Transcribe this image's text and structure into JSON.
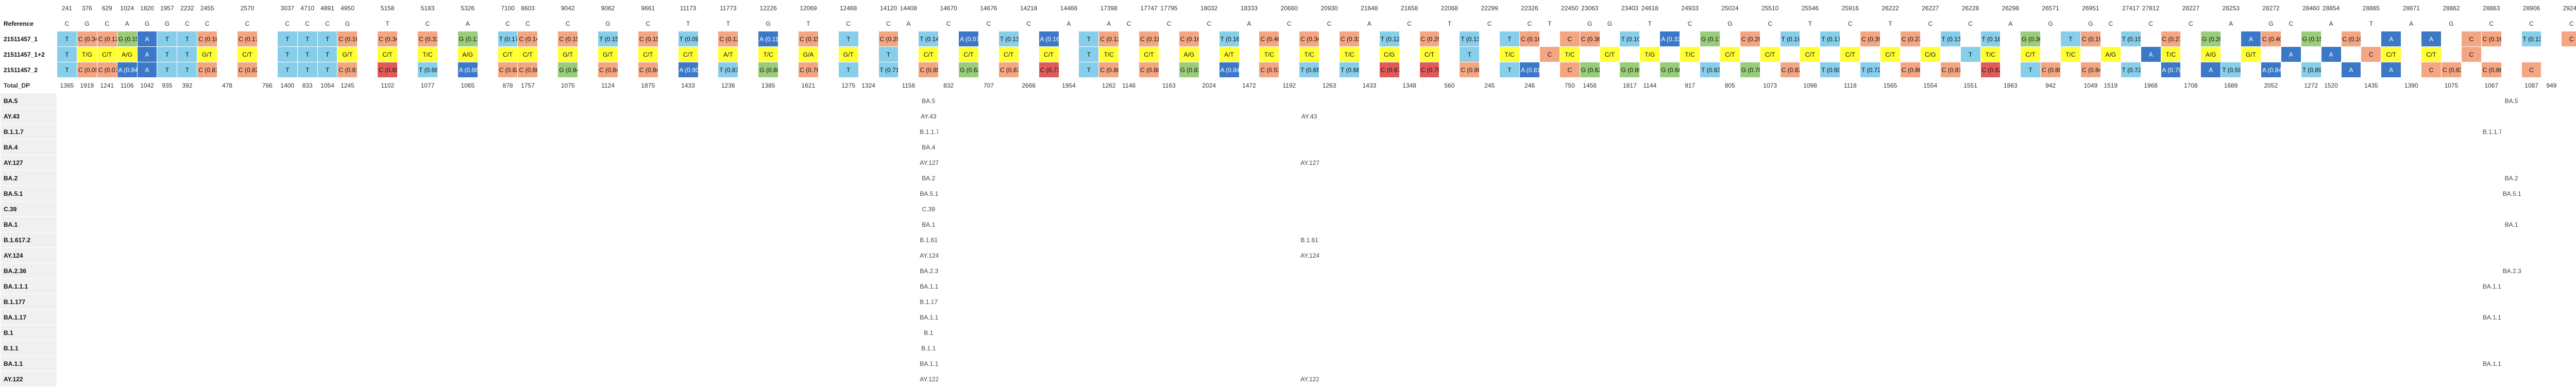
{
  "rows": [
    {
      "label": "",
      "kind": "pos",
      "cells": [
        "241",
        "376",
        "629",
        "1024",
        "1820",
        "1957",
        "2232",
        "2455",
        "",
        "2570",
        "",
        "3037",
        "4710",
        "4891",
        "4950",
        "",
        "5158",
        "",
        "5183",
        "",
        "5326",
        "",
        "7100",
        "8603",
        "",
        "9042",
        "",
        "9062",
        "",
        "9661",
        "",
        "11173",
        "",
        "11773",
        "",
        "12226",
        "",
        "12069",
        "",
        "12468",
        "",
        "14120",
        "14408",
        "",
        "14670",
        "",
        "14676",
        "",
        "14218",
        "",
        "14466",
        "",
        "17398",
        "",
        "17747",
        "17795",
        "",
        "18032",
        "",
        "18333",
        "",
        "20660",
        "",
        "20930",
        "",
        "21648",
        "",
        "21658",
        "",
        "22068",
        "",
        "22299",
        "",
        "22326",
        "",
        "22450",
        "23063",
        "",
        "23403",
        "24618",
        "",
        "24933",
        "",
        "25024",
        "",
        "25510",
        "",
        "25546",
        "",
        "25916",
        "",
        "26222",
        "",
        "26227",
        "",
        "26228",
        "",
        "26298",
        "",
        "26571",
        "",
        "26951",
        "",
        "27417",
        "27812",
        "",
        "28227",
        "",
        "28253",
        "",
        "28272",
        "",
        "28460",
        "28854",
        "",
        "28865",
        "",
        "28871",
        "",
        "28862",
        "",
        "28863",
        "",
        "28906",
        "",
        "29245",
        "",
        "29326"
      ]
    },
    {
      "label": "Reference",
      "kind": "ref",
      "cells": [
        "C",
        "G",
        "C",
        "A",
        "G",
        "G",
        "C",
        "C",
        "",
        "C",
        "",
        "C",
        "C",
        "C",
        "G",
        "",
        "T",
        "",
        "C",
        "",
        "A",
        "",
        "C",
        "C",
        "",
        "C",
        "",
        "G",
        "",
        "C",
        "",
        "T",
        "",
        "T",
        "",
        "G",
        "",
        "T",
        "",
        "C",
        "",
        "C",
        "A",
        "",
        "C",
        "",
        "C",
        "",
        "C",
        "",
        "A",
        "",
        "A",
        "C",
        "",
        "C",
        "",
        "C",
        "",
        "A",
        "",
        "C",
        "",
        "C",
        "",
        "A",
        "",
        "C",
        "",
        "T",
        "",
        "C",
        "",
        "C",
        "T",
        "",
        "G",
        "G",
        "",
        "T",
        "",
        "C",
        "",
        "G",
        "",
        "C",
        "",
        "T",
        "",
        "C",
        "",
        "T",
        "",
        "C",
        "",
        "C",
        "",
        "A",
        "",
        "G",
        "",
        "G",
        "C",
        "",
        "C",
        "",
        "C",
        "",
        "A",
        "",
        "G",
        "C",
        "",
        "A",
        "",
        "T",
        "",
        "A",
        "",
        "G",
        "",
        "C",
        "",
        "C",
        "",
        "C"
      ]
    },
    {
      "label": "21511457_1",
      "kind": "sample",
      "cells": [
        "T",
        "C (0.344)",
        "C (0.126)",
        "G (0.156)",
        "A",
        "T",
        "T",
        "C (0.182)",
        "",
        "C (0.178)",
        "",
        "T",
        "T",
        "T",
        "C (0.166)",
        "",
        "C (0.345)",
        "",
        "C (0.335)",
        "",
        "G (0.131)",
        "",
        "T (0.172)",
        "C (0.14)",
        "",
        "C (0.159)",
        "",
        "T (0.158)",
        "",
        "C (0.153)",
        "",
        "T (0.093)",
        "",
        "C (0.121)",
        "",
        "A (0.113)",
        "",
        "C (0.151)",
        "",
        "T",
        "",
        "C (0.29)",
        "",
        "T (0.144)",
        "",
        "A (0.073)",
        "",
        "T (0.13)",
        "",
        "A (0.167)",
        "",
        "T",
        "C (0.12)",
        "",
        "C (0.112)",
        "",
        "C (0.166)",
        "",
        "T (0.16)",
        "",
        "C (0.467)",
        "",
        "C (0.348)",
        "",
        "C (0.332)",
        "",
        "T (0.125)",
        "",
        "C (0.294)",
        "",
        "T (0.134)",
        "",
        "T",
        "C (0.161)",
        "",
        "C",
        "C (0.36)",
        "",
        "T (0.104)",
        "",
        "A (0.333)",
        "",
        "G (0.17)",
        "",
        "C (0.291)",
        "",
        "T (0.196)",
        "",
        "T (0.175)",
        "",
        "C (0.396)",
        "",
        "C (0.278)",
        "",
        "T (0.137)",
        "",
        "T (0.185)",
        "",
        "G (0.369)",
        "",
        "T",
        "C (0.195)",
        "",
        "T (0.155)",
        "",
        "C (0.279)",
        "",
        "G (0.203)",
        "",
        "A",
        "C (0.408)",
        "",
        "G (0.151)",
        "",
        "C (0.101)",
        "",
        "A",
        "",
        "A",
        "",
        "C",
        "C (0.162)",
        "",
        "T (0.138)",
        "",
        "C"
      ]
    },
    {
      "label": "21511457_1+2",
      "kind": "sample",
      "cells": [
        "T",
        "T/G",
        "C/T",
        "A/G",
        "A",
        "T",
        "T",
        "G/T",
        "",
        "C/T",
        "",
        "T",
        "T",
        "T",
        "G/T",
        "",
        "C/T",
        "",
        "T/C",
        "",
        "A/G",
        "",
        "C/T",
        "C/T",
        "",
        "G/T",
        "",
        "G/T",
        "",
        "C/T",
        "",
        "C/T",
        "",
        "A/T",
        "",
        "T/C",
        "",
        "G/A",
        "",
        "G/T",
        "",
        "T",
        "",
        "C/T",
        "",
        "C/T",
        "",
        "C/T",
        "",
        "C/T",
        "",
        "T",
        "T/C",
        "",
        "C/T",
        "",
        "A/G",
        "",
        "A/T",
        "",
        "T/C",
        "",
        "T/C",
        "",
        "T/C",
        "",
        "C/G",
        "",
        "C/T",
        "",
        "T",
        "",
        "T/C",
        "",
        "C",
        "T/C",
        "",
        "C/T",
        "",
        "T/G",
        "",
        "T/C",
        "",
        "C/T",
        "",
        "C/T",
        "",
        "C/T",
        "",
        "C/T",
        "",
        "C/T",
        "",
        "C/G",
        "",
        "T",
        "T/C",
        "",
        "C/T",
        "",
        "T/C",
        "",
        "A/G",
        "",
        "A",
        "T/C",
        "",
        "A/G",
        "",
        "G/T",
        "",
        "A",
        "",
        "A",
        "",
        "C",
        "C/T",
        "",
        "C/T",
        "",
        "C"
      ]
    },
    {
      "label": "21511457_2",
      "kind": "sample",
      "cells": [
        "T",
        "C (0.058)",
        "C (0.072)",
        "A (0.844)",
        "A",
        "T",
        "T",
        "C (0.818)",
        "",
        "C (0.822)",
        "",
        "T",
        "T",
        "T",
        "C (0.814)",
        "",
        "C (0.654)",
        "",
        "T (0.661)",
        "",
        "A (0.869)",
        "",
        "C (0.828)",
        "C (0.86)",
        "",
        "G (0.842)",
        "",
        "C (0.842)",
        "",
        "C (0.847)",
        "",
        "A (0.907)",
        "",
        "T (0.879)",
        "",
        "G (0.887)",
        "",
        "C (0.769)",
        "",
        "T",
        "",
        "T (0.71)",
        "",
        "C (0.856)",
        "",
        "G (0.627)",
        "",
        "C (0.87)",
        "",
        "C (0.733)",
        "",
        "T",
        "C (0.88)",
        "",
        "C (0.888)",
        "",
        "G (0.834)",
        "",
        "A (0.84)",
        "",
        "C (0.533)",
        "",
        "T (0.652)",
        "",
        "T (0.668)",
        "",
        "C (0.675)",
        "",
        "C (0.706)",
        "",
        "C (0.866)",
        "",
        "T",
        "A (0.819)",
        "",
        "C",
        "G (0.62)",
        "",
        "G (0.896)",
        "",
        "G (0.667)",
        "",
        "T (0.83)",
        "",
        "G (0.709)",
        "",
        "C (0.825)",
        "",
        "T (0.604)",
        "",
        "T (0.724)",
        "",
        "C (0.863)",
        "",
        "C (0.811)",
        "",
        "C (0.628)",
        "",
        "T",
        "C (0.805)",
        "",
        "C (0.841)",
        "",
        "T (0.724)",
        "",
        "A (0.797)",
        "",
        "A",
        "T (0.592)",
        "",
        "A (0.849)",
        "",
        "T (0.899)",
        "",
        "A",
        "",
        "A",
        "",
        "C",
        "C (0.838)",
        "",
        "C (0.864)",
        "",
        "C"
      ]
    },
    {
      "label": "Total_DP",
      "kind": "dp",
      "cells": [
        "1365",
        "1919",
        "1241",
        "1106",
        "1042",
        "935",
        "392",
        "",
        "478",
        "",
        "766",
        "1400",
        "833",
        "1054",
        "1245",
        "",
        "1102",
        "",
        "1077",
        "",
        "1065",
        "",
        "878",
        "1757",
        "",
        "1075",
        "",
        "1124",
        "",
        "1875",
        "",
        "1433",
        "",
        "1236",
        "",
        "1385",
        "",
        "1621",
        "",
        "1275",
        "1324",
        "",
        "1156",
        "",
        "832",
        "",
        "707",
        "",
        "2666",
        "",
        "1954",
        "",
        "1262",
        "1146",
        "",
        "1163",
        "",
        "2024",
        "",
        "1472",
        "",
        "1192",
        "",
        "1263",
        "",
        "1433",
        "",
        "1348",
        "",
        "560",
        "",
        "245",
        "",
        "246",
        "",
        "750",
        "1456",
        "",
        "1817",
        "1144",
        "",
        "917",
        "",
        "805",
        "",
        "1073",
        "",
        "1098",
        "",
        "1118",
        "",
        "1565",
        "",
        "1554",
        "",
        "1551",
        "",
        "1863",
        "",
        "942",
        "",
        "1049",
        "1519",
        "",
        "1968",
        "",
        "1708",
        "",
        "1689",
        "",
        "2052",
        "",
        "1272",
        "1520",
        "",
        "1435",
        "",
        "1390",
        "",
        "1075",
        "",
        "1067",
        "",
        "1087",
        "949",
        "",
        "1083",
        "",
        "1087"
      ]
    },
    {
      "label": "BA.5",
      "kind": "lin",
      "cells": [
        {
          "col": 43,
          "text": "BA.5"
        },
        {
          "col": 122,
          "text": "BA.5"
        },
        {
          "col": 126,
          "text": "BA.5"
        },
        {
          "col": 195,
          "text": "BA.5"
        },
        {
          "col": 209,
          "text": "BA.5"
        }
      ]
    },
    {
      "label": "AY.43",
      "kind": "lin",
      "cells": [
        {
          "col": 43,
          "text": "AY.43"
        },
        {
          "col": 62,
          "text": "AY.43"
        },
        {
          "col": 126,
          "text": "AY.43"
        },
        {
          "col": 195,
          "text": "AY.43"
        }
      ]
    },
    {
      "label": "B.1.1.7",
      "kind": "lin",
      "cells": [
        {
          "col": 43,
          "text": "B.1.1.7"
        },
        {
          "col": 121,
          "text": "B.1.1.7"
        },
        {
          "col": 126,
          "text": "B.1.1.7"
        },
        {
          "col": 195,
          "text": "B.1.1.7"
        },
        {
          "col": 202,
          "text": "B.1.1.7"
        },
        {
          "col": 209,
          "text": "B.1.1.7"
        }
      ]
    },
    {
      "label": "BA.4",
      "kind": "lin",
      "cells": [
        {
          "col": 43,
          "text": "BA.4"
        },
        {
          "col": 126,
          "text": "BA.4"
        },
        {
          "col": 209,
          "text": "BA.4"
        }
      ]
    },
    {
      "label": "AY.127",
      "kind": "lin",
      "cells": [
        {
          "col": 43,
          "text": "AY.127"
        },
        {
          "col": 62,
          "text": "AY.127"
        },
        {
          "col": 126,
          "text": "AY.127"
        },
        {
          "col": 195,
          "text": "AY.127"
        }
      ]
    },
    {
      "label": "BA.2",
      "kind": "lin",
      "cells": [
        {
          "col": 43,
          "text": "BA.2"
        },
        {
          "col": 122,
          "text": "BA.2"
        },
        {
          "col": 126,
          "text": "BA.2"
        },
        {
          "col": 195,
          "text": "BA.2"
        },
        {
          "col": 202,
          "text": "BA.2"
        },
        {
          "col": 209,
          "text": "BA.2"
        }
      ]
    },
    {
      "label": "BA.5.1",
      "kind": "lin",
      "cells": [
        {
          "col": 43,
          "text": "BA.5.1"
        },
        {
          "col": 122,
          "text": "BA.5.1"
        },
        {
          "col": 126,
          "text": "BA.5.1"
        },
        {
          "col": 195,
          "text": "BA.5.1"
        },
        {
          "col": 202,
          "text": "BA.5.1"
        },
        {
          "col": 209,
          "text": "BA.5.1"
        }
      ]
    },
    {
      "label": "C.39",
      "kind": "lin",
      "cells": [
        {
          "col": 43,
          "text": "C.39"
        },
        {
          "col": 126,
          "text": "C.39"
        },
        {
          "col": 195,
          "text": "C.39"
        },
        {
          "col": 202,
          "text": "C.39"
        },
        {
          "col": 209,
          "text": "C.39"
        }
      ]
    },
    {
      "label": "BA.1",
      "kind": "lin",
      "cells": [
        {
          "col": 43,
          "text": "BA.1"
        },
        {
          "col": 122,
          "text": "BA.1"
        },
        {
          "col": 126,
          "text": "BA.1"
        },
        {
          "col": 195,
          "text": "BA.1"
        },
        {
          "col": 202,
          "text": "BA.1"
        },
        {
          "col": 209,
          "text": "BA.1"
        }
      ]
    },
    {
      "label": "B.1.617.2",
      "kind": "lin",
      "cells": [
        {
          "col": 43,
          "text": "B.1.617.2"
        },
        {
          "col": 62,
          "text": "B.1.617.2"
        },
        {
          "col": 126,
          "text": "B.1.617.2"
        },
        {
          "col": 195,
          "text": "B.1.617.2"
        }
      ]
    },
    {
      "label": "AY.124",
      "kind": "lin",
      "cells": [
        {
          "col": 43,
          "text": "AY.124"
        },
        {
          "col": 62,
          "text": "AY.124"
        },
        {
          "col": 126,
          "text": "AY.124"
        },
        {
          "col": 195,
          "text": "AY.124"
        }
      ]
    },
    {
      "label": "BA.2.36",
      "kind": "lin",
      "cells": [
        {
          "col": 43,
          "text": "BA.2.36"
        },
        {
          "col": 122,
          "text": "BA.2.36"
        },
        {
          "col": 126,
          "text": "BA.2.36"
        },
        {
          "col": 195,
          "text": "BA.2.36"
        },
        {
          "col": 202,
          "text": "BA.2.36"
        },
        {
          "col": 209,
          "text": "BA.2.36"
        }
      ]
    },
    {
      "label": "BA.1.1.1",
      "kind": "lin",
      "cells": [
        {
          "col": 43,
          "text": "BA.1.1.1"
        },
        {
          "col": 121,
          "text": "BA.1.1.1"
        },
        {
          "col": 126,
          "text": "BA.1.1.1"
        },
        {
          "col": 195,
          "text": "BA.1.1.1"
        },
        {
          "col": 202,
          "text": "BA.1.1.1"
        },
        {
          "col": 209,
          "text": "BA.1.1.1"
        }
      ]
    },
    {
      "label": "B.1.177",
      "kind": "lin",
      "cells": [
        {
          "col": 43,
          "text": "B.1.177"
        },
        {
          "col": 126,
          "text": "B.1.177"
        },
        {
          "col": 195,
          "text": "B.1.177"
        }
      ]
    },
    {
      "label": "BA.1.17",
      "kind": "lin",
      "cells": [
        {
          "col": 43,
          "text": "BA.1.17"
        },
        {
          "col": 121,
          "text": "BA.1.17"
        },
        {
          "col": 126,
          "text": "BA.1.17"
        },
        {
          "col": 195,
          "text": "BA.1.17"
        },
        {
          "col": 202,
          "text": "BA.1.17"
        },
        {
          "col": 209,
          "text": "BA.1.17"
        }
      ]
    },
    {
      "label": "B.1",
      "kind": "lin",
      "cells": [
        {
          "col": 43,
          "text": "B.1"
        },
        {
          "col": 126,
          "text": "B.1"
        },
        {
          "col": 195,
          "text": "B.1"
        }
      ]
    },
    {
      "label": "B.1.1",
      "kind": "lin",
      "cells": [
        {
          "col": 43,
          "text": "B.1.1"
        },
        {
          "col": 126,
          "text": "B.1.1"
        },
        {
          "col": 195,
          "text": "B.1.1"
        },
        {
          "col": 202,
          "text": "B.1.1"
        },
        {
          "col": 209,
          "text": "B.1.1"
        }
      ]
    },
    {
      "label": "BA.1.1",
      "kind": "lin",
      "cells": [
        {
          "col": 43,
          "text": "BA.1.1"
        },
        {
          "col": 121,
          "text": "BA.1.1"
        },
        {
          "col": 126,
          "text": "BA.1.1"
        },
        {
          "col": 195,
          "text": "BA.1.1"
        },
        {
          "col": 202,
          "text": "BA.1.1"
        },
        {
          "col": 209,
          "text": "BA.1.1"
        }
      ]
    },
    {
      "label": "AY.122",
      "kind": "lin",
      "cells": [
        {
          "col": 43,
          "text": "AY.122"
        },
        {
          "col": 62,
          "text": "AY.122"
        },
        {
          "col": 126,
          "text": "AY.122"
        },
        {
          "col": 195,
          "text": "AY.122"
        }
      ]
    }
  ],
  "colors": {
    "A": "#3b78c8",
    "T": "#87ceeb",
    "G": "#9acd7a",
    "C": "#f4a582",
    "mixed": "#ffff33",
    "low_T": "#87ceeb",
    "low_C": "#f4a582",
    "dark_red": "#e15a5a",
    "reference_bg": "#ffffff",
    "lineage_bg": "#f5f5f5"
  }
}
